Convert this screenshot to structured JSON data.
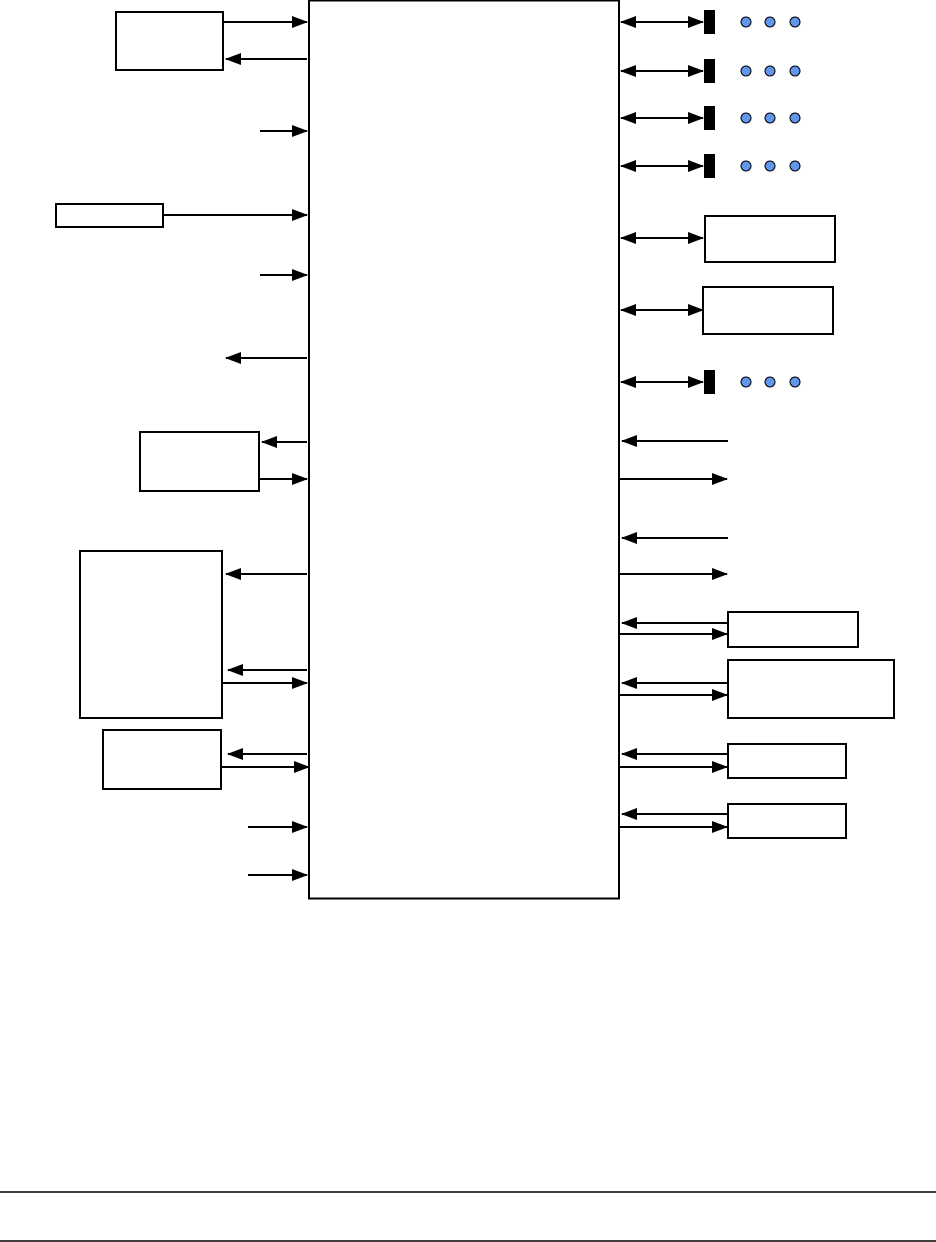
{
  "diagram": {
    "colors": {
      "stroke": "#000000",
      "background": "#ffffff",
      "connector_dot": "#6495ed"
    },
    "icons": {
      "arrowhead": "arrow-icon",
      "connector_bar": "connector-bar-icon",
      "continuation_dots": "ellipsis-dots-icon"
    }
  }
}
